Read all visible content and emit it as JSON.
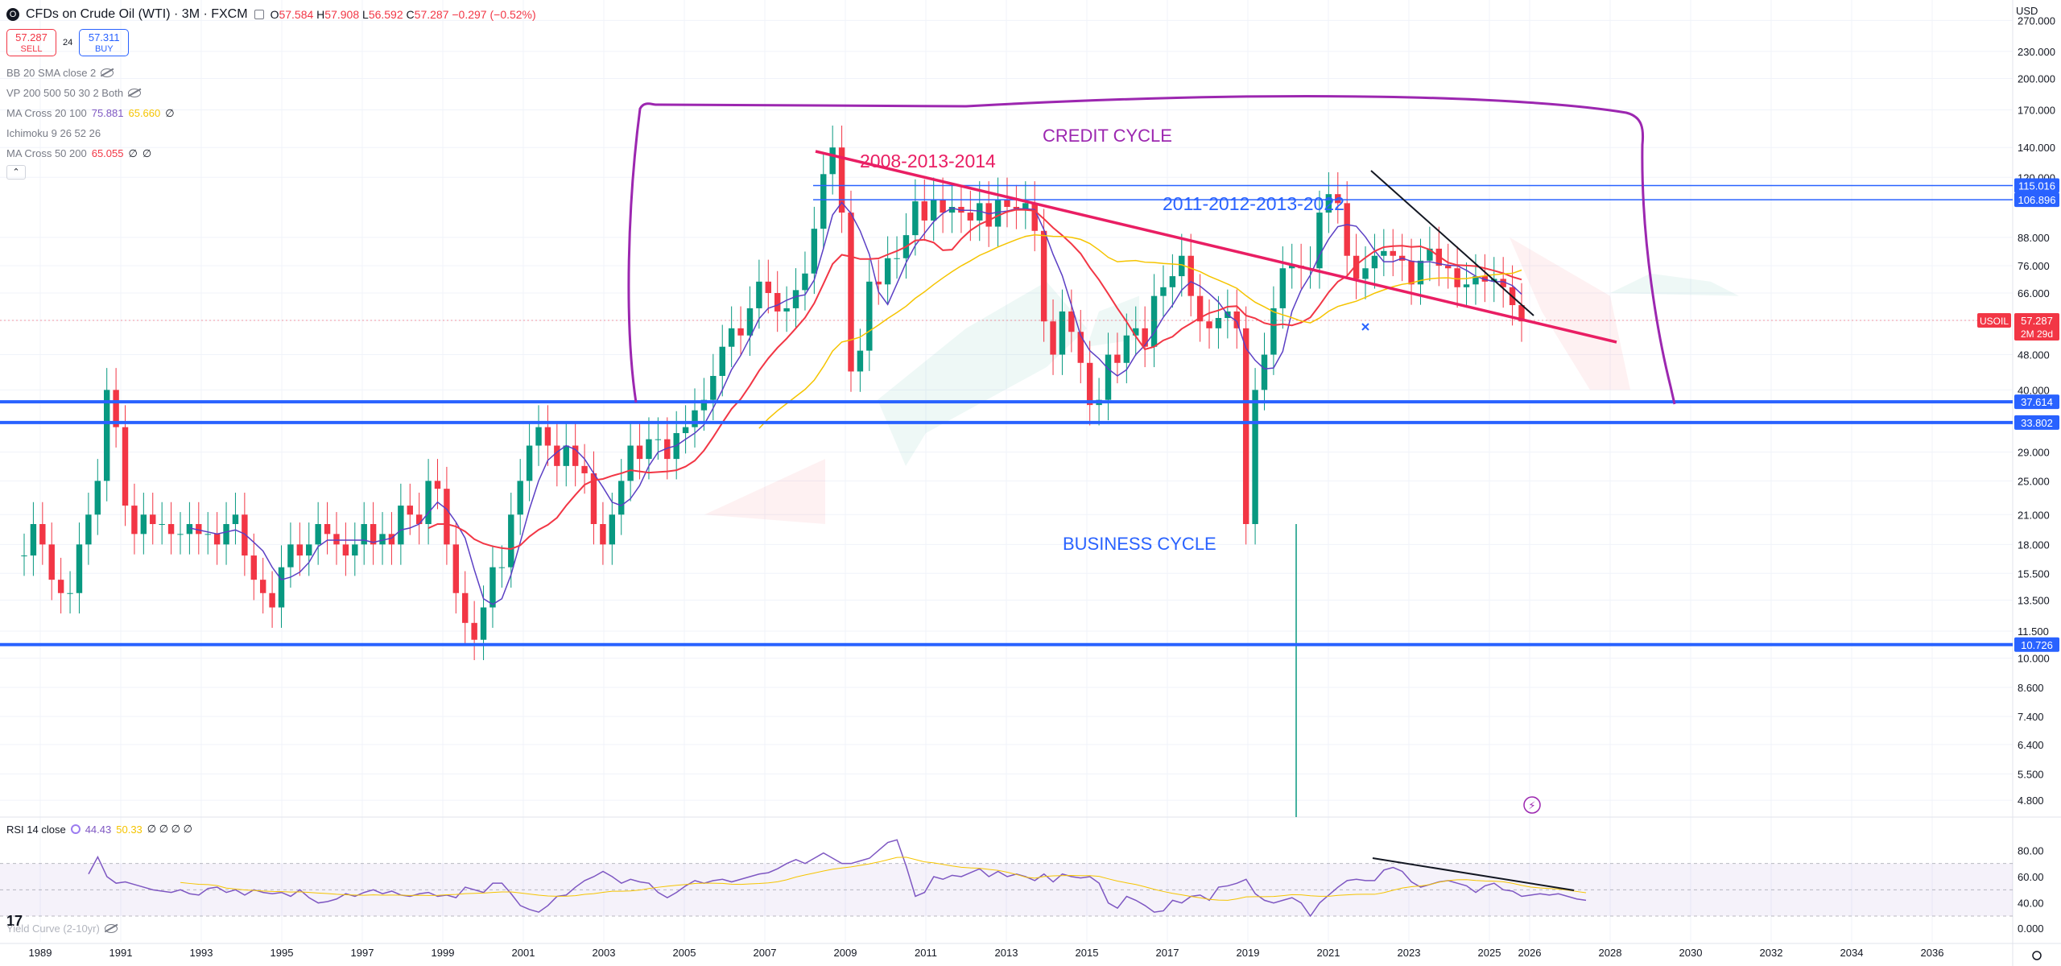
{
  "header": {
    "logo_glyph": "O",
    "title": "CFDs on Crude Oil (WTI) · 3M · FXCM",
    "ohlc": {
      "o_label": "O",
      "o": "57.584",
      "h_label": "H",
      "h": "57.908",
      "l_label": "L",
      "l": "56.592",
      "c_label": "C",
      "c": "57.287",
      "change": "−0.297 (−0.52%)"
    },
    "sell_price": "57.287",
    "sell_label": "SELL",
    "spread": "24",
    "buy_price": "57.311",
    "buy_label": "BUY",
    "currency": "USD",
    "collapse_glyph": "⌃"
  },
  "indicators": [
    {
      "name": "BB 20 SMA close 2",
      "values": [],
      "hidden": true
    },
    {
      "name": "VP 200 500 50 30 2 Both",
      "values": [],
      "hidden": true
    },
    {
      "name": "MA Cross 20 100",
      "values": [
        {
          "v": "75.881",
          "color": "#7e57c2"
        },
        {
          "v": "65.660",
          "color": "#f5c400"
        },
        {
          "v": "∅",
          "color": "#131722"
        }
      ]
    },
    {
      "name": "Ichimoku 9 26 52 26",
      "values": []
    },
    {
      "name": "MA Cross 50 200",
      "values": [
        {
          "v": "65.055",
          "color": "#f23645"
        },
        {
          "v": "∅",
          "color": "#131722"
        },
        {
          "v": "∅",
          "color": "#131722"
        }
      ]
    }
  ],
  "rsi": {
    "name": "RSI 14 close",
    "v1": "44.43",
    "v2": "50.33",
    "extra": "∅ ∅ ∅ ∅",
    "ticks": [
      "80.00",
      "60.00",
      "40.00"
    ]
  },
  "yield": {
    "name": "Yield Curve (2-10yr)",
    "tick": "0.000"
  },
  "tv_logo": "17",
  "annotations": {
    "credit_cycle": "CREDIT CYCLE",
    "business_cycle": "BUSINESS CYCLE",
    "label_2008": "2008-2013-2014",
    "label_2011": "2011-2012-2013-2022",
    "lightning": "⚡"
  },
  "price_tags": [
    {
      "v": "115.016",
      "color": "#2962ff"
    },
    {
      "v": "106.896",
      "color": "#2962ff"
    },
    {
      "v": "37.614",
      "color": "#2962ff"
    },
    {
      "v": "33.802",
      "color": "#2962ff"
    },
    {
      "v": "10.726",
      "color": "#2962ff"
    }
  ],
  "symbol_tag": {
    "name": "USOIL",
    "price": "57.287",
    "countdown": "2M 29d",
    "color": "#f23645"
  },
  "chart_data": {
    "type": "candlestick",
    "price_axis_log": true,
    "y_ticks": [
      "270.000",
      "230.000",
      "200.000",
      "170.000",
      "140.000",
      "120.000",
      "88.000",
      "76.000",
      "66.000",
      "57.287",
      "48.000",
      "40.000",
      "29.000",
      "25.000",
      "21.000",
      "18.000",
      "15.500",
      "13.500",
      "11.500",
      "10.000",
      "8.600",
      "7.400",
      "6.400",
      "5.500",
      "4.800"
    ],
    "x_ticks": [
      "1989",
      "1991",
      "1993",
      "1995",
      "1997",
      "1999",
      "2001",
      "2003",
      "2005",
      "2007",
      "2009",
      "2011",
      "2013",
      "2015",
      "2017",
      "2019",
      "2021",
      "2023",
      "2025",
      "2026",
      "2028",
      "2030",
      "2032",
      "2034",
      "2036"
    ],
    "quarters_close": [
      17,
      20,
      18,
      15,
      14,
      14,
      18,
      21,
      25,
      40,
      33,
      22,
      19,
      21,
      20,
      20,
      19,
      19,
      20,
      19,
      19,
      18,
      20,
      21,
      17,
      15,
      14,
      13,
      16,
      18,
      17,
      18,
      20,
      19,
      18,
      17,
      18,
      20,
      18,
      19,
      18,
      22,
      21,
      20,
      25,
      24,
      18,
      14,
      12,
      11,
      13,
      16,
      16,
      21,
      25,
      30,
      33,
      30,
      27,
      30,
      27,
      26,
      20,
      18,
      21,
      25,
      30,
      28,
      31,
      31,
      28,
      32,
      33,
      36,
      38,
      43,
      50,
      55,
      53,
      61,
      70,
      66,
      60,
      61,
      67,
      73,
      92,
      122,
      140,
      100,
      44,
      49,
      70,
      69,
      79,
      79,
      89,
      106,
      96,
      107,
      100,
      103,
      100,
      96,
      105,
      93,
      107,
      103,
      102,
      105,
      91,
      57,
      48,
      60,
      54,
      46,
      37,
      38,
      48,
      46,
      53,
      55,
      50,
      65,
      68,
      72,
      80,
      65,
      57,
      55,
      58,
      60,
      55,
      20,
      40,
      48,
      61,
      75,
      76,
      75,
      75,
      100,
      110,
      105,
      80,
      71,
      75,
      80,
      82,
      80,
      78,
      69,
      78,
      83,
      76,
      75,
      68,
      69,
      72,
      70,
      71,
      68,
      62,
      57
    ],
    "annotation_levels": [
      115.016,
      106.896,
      37.614,
      33.802,
      10.726
    ],
    "ma_overlays": [
      "MA 20 (purple)",
      "MA 100 (yellow)",
      "MA 50 (red)"
    ],
    "rsi_values": [
      62,
      75,
      60,
      55,
      56,
      54,
      52,
      50,
      49,
      48,
      50,
      47,
      46,
      51,
      52,
      48,
      50,
      46,
      50,
      48,
      47,
      48,
      45,
      50,
      44,
      40,
      41,
      43,
      47,
      45,
      48,
      50,
      47,
      49,
      46,
      45,
      47,
      48,
      45,
      46,
      44,
      52,
      50,
      48,
      55,
      55,
      47,
      38,
      35,
      33,
      38,
      45,
      46,
      52,
      57,
      60,
      64,
      60,
      55,
      58,
      56,
      55,
      48,
      44,
      48,
      53,
      57,
      55,
      57,
      58,
      56,
      58,
      60,
      62,
      63,
      66,
      70,
      73,
      70,
      74,
      78,
      74,
      70,
      70,
      72,
      74,
      80,
      86,
      88,
      68,
      45,
      48,
      60,
      58,
      61,
      60,
      63,
      66,
      60,
      64,
      60,
      62,
      60,
      57,
      62,
      56,
      62,
      60,
      59,
      60,
      55,
      40,
      36,
      45,
      42,
      38,
      33,
      34,
      42,
      40,
      45,
      46,
      42,
      52,
      53,
      55,
      58,
      47,
      42,
      40,
      42,
      44,
      40,
      30,
      40,
      46,
      52,
      57,
      58,
      57,
      57,
      65,
      67,
      64,
      56,
      52,
      54,
      56,
      57,
      55,
      53,
      48,
      53,
      55,
      50,
      49,
      45,
      46,
      47,
      46,
      47,
      45,
      43,
      42
    ]
  }
}
